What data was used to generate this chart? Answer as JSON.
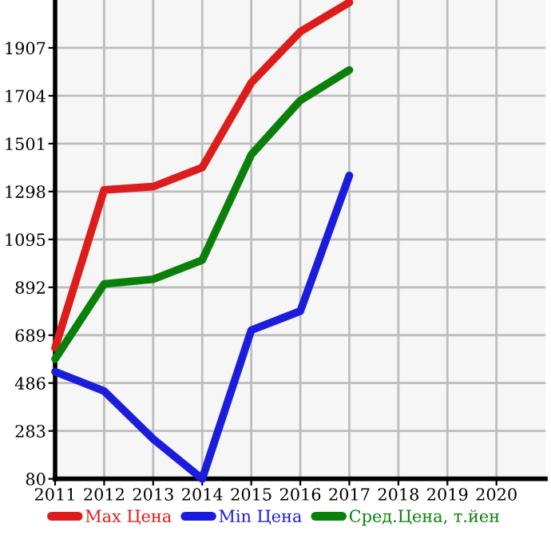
{
  "chart_data": {
    "type": "line",
    "x": [
      2011,
      2012,
      2013,
      2014,
      2015,
      2016,
      2017
    ],
    "series": [
      {
        "name": "Max Цена",
        "color": "#dd1c1c",
        "values": [
          635,
          1305,
          1319,
          1400,
          1759,
          1976,
          2100
        ]
      },
      {
        "name": "Min Цена",
        "color": "#1c1cdd",
        "values": [
          534,
          452,
          249,
          80,
          710,
          791,
          1366
        ]
      },
      {
        "name": "Сред.Цена, т.йен",
        "color": "#0a800a",
        "values": [
          588,
          906,
          926,
          1007,
          1454,
          1684,
          1813
        ]
      }
    ],
    "xlim": [
      2011,
      2021
    ],
    "xticks": [
      2011,
      2012,
      2013,
      2014,
      2015,
      2016,
      2017,
      2018,
      2019,
      2020
    ],
    "ylim": [
      80,
      2110
    ],
    "yticks": [
      80,
      283,
      486,
      689,
      892,
      1095,
      1298,
      1501,
      1704,
      1907
    ],
    "grid": true,
    "legend": "bottom",
    "marker": "none",
    "line_style": "solid"
  }
}
